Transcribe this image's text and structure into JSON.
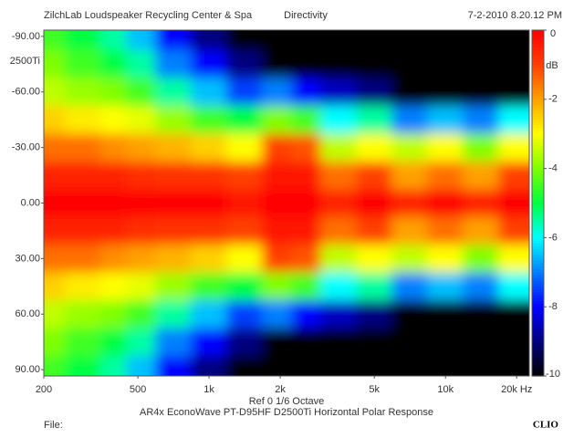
{
  "chart_data": {
    "type": "heatmap",
    "title": "Directivity",
    "company": "ZilchLab Loudspeaker Recycling Center & Spa",
    "timestamp": "7-2-2010 8.20.12 PM",
    "model_label": "2500Ti",
    "x_label": "Ref 0   1/6 Octave",
    "subtitle": "AR4x EconoWave PT-D95HF D2500Ti Horizontal Polar Response",
    "file_label": "File:",
    "brand": "CLIO",
    "colorbar_label": "dB",
    "x": [
      200,
      300,
      400,
      500,
      700,
      1000,
      1400,
      2000,
      2500,
      3500,
      5000,
      7000,
      10000,
      14000,
      20000
    ],
    "y": [
      -90,
      -75,
      -60,
      -45,
      -30,
      -15,
      0,
      15,
      30,
      45,
      60,
      75,
      90
    ],
    "z": [
      [
        -4.5,
        -5,
        -5.5,
        -6.5,
        -8,
        -9,
        -10,
        -10,
        -10,
        -10,
        -10,
        -10,
        -10,
        -10,
        -10
      ],
      [
        -4,
        -4.5,
        -5,
        -5.5,
        -7,
        -8,
        -9,
        -10,
        -10,
        -10,
        -10,
        -10,
        -10,
        -10,
        -10
      ],
      [
        -3.5,
        -3.8,
        -4,
        -4.5,
        -5.5,
        -6.5,
        -7.5,
        -7,
        -8,
        -8.5,
        -9,
        -10,
        -10,
        -10,
        -10
      ],
      [
        -2.5,
        -2.8,
        -3,
        -3.2,
        -3.8,
        -4.5,
        -5,
        -4,
        -4.5,
        -6,
        -5.5,
        -7,
        -6.5,
        -7,
        -6
      ],
      [
        -1.5,
        -1.5,
        -1.8,
        -2,
        -2.2,
        -2.5,
        -3,
        -1,
        -1.2,
        -3.5,
        -3,
        -3.5,
        -3,
        -4,
        -3
      ],
      [
        -0.5,
        -0.5,
        -0.5,
        -0.7,
        -0.8,
        -0.8,
        -1,
        -0.3,
        -0.3,
        -1.5,
        -1,
        -2,
        -1.5,
        -2,
        -1
      ],
      [
        0,
        0,
        0,
        0,
        0,
        0,
        -0.3,
        0,
        0,
        -0.5,
        0,
        -0.5,
        0,
        -0.5,
        0
      ],
      [
        -0.5,
        -0.5,
        -0.5,
        -0.7,
        -0.8,
        -0.8,
        -1,
        -0.3,
        -0.3,
        -1.5,
        -1,
        -2,
        -1.5,
        -2,
        -1
      ],
      [
        -1.5,
        -1.5,
        -1.8,
        -2,
        -2.2,
        -2.5,
        -3,
        -1,
        -1.2,
        -3.5,
        -3,
        -3.5,
        -3,
        -4,
        -3
      ],
      [
        -2.5,
        -2.8,
        -3,
        -3.2,
        -3.8,
        -4.5,
        -5,
        -4,
        -4.5,
        -6,
        -5.5,
        -7,
        -6.5,
        -7,
        -6
      ],
      [
        -3.5,
        -3.8,
        -4,
        -4.5,
        -5.5,
        -6.5,
        -7.5,
        -7,
        -8,
        -8.5,
        -9,
        -10,
        -10,
        -10,
        -10
      ],
      [
        -4,
        -4.5,
        -5,
        -5.5,
        -7,
        -8,
        -9,
        -10,
        -10,
        -10,
        -10,
        -10,
        -10,
        -10,
        -10
      ],
      [
        -4.5,
        -5,
        -5.5,
        -6.5,
        -8,
        -9,
        -10,
        -10,
        -10,
        -10,
        -10,
        -10,
        -10,
        -10,
        -10
      ]
    ],
    "colorscale": [
      "#000000",
      "#000080",
      "#0000ff",
      "#0080ff",
      "#00ffff",
      "#00ff40",
      "#80ff00",
      "#ffff00",
      "#ffa000",
      "#ff4000",
      "#ff0000"
    ],
    "zlim": [
      -10,
      0
    ],
    "zticks": [
      0,
      -2,
      -4,
      -6,
      -8,
      -10
    ],
    "xlim": [
      200,
      22600
    ],
    "xscale": "log",
    "xticks": [
      200,
      500,
      {
        "value": 1000,
        "label": "1k"
      },
      {
        "value": 2000,
        "label": "2k"
      },
      {
        "value": 5000,
        "label": "5k"
      },
      {
        "value": 10000,
        "label": "10k"
      },
      {
        "value": 20000,
        "label": "20k Hz"
      }
    ],
    "ylim": [
      -93.4,
      93.4
    ],
    "yticks": [
      {
        "value": -90,
        "label": "-90.00"
      },
      {
        "value": -60,
        "label": "-60.00"
      },
      {
        "value": -30,
        "label": "-30.00"
      },
      {
        "value": 0,
        "label": "0.00"
      },
      {
        "value": 30,
        "label": "30.00"
      },
      {
        "value": 60,
        "label": "60.00"
      },
      {
        "value": 90,
        "label": "90.00"
      }
    ]
  }
}
